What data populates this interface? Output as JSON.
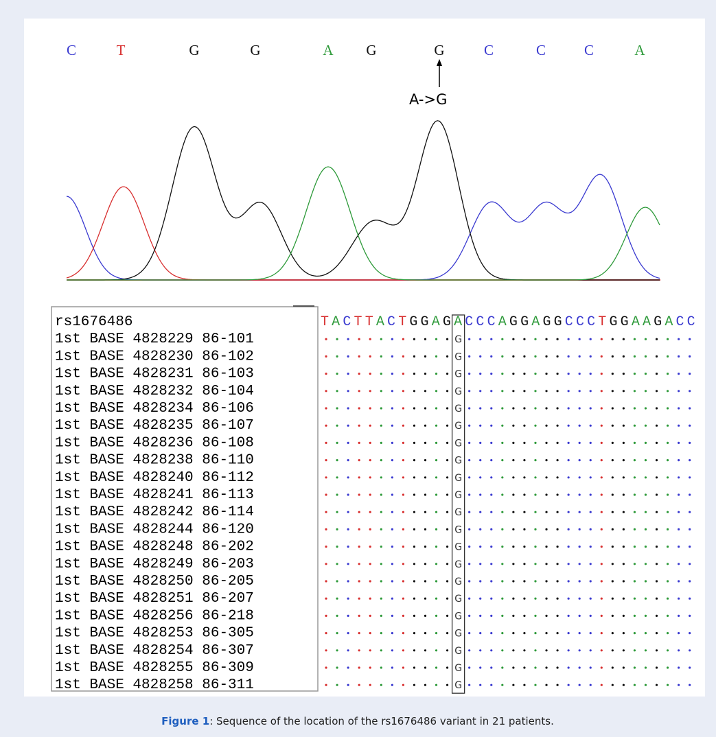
{
  "figure": {
    "base_calls": [
      "C",
      "T",
      "G",
      "G",
      "A",
      "G",
      "G",
      "C",
      "C",
      "C",
      "A"
    ],
    "base_colors": {
      "A": "#2e9a3a",
      "C": "#3a3ad0",
      "G": "#111111",
      "T": "#d83030"
    },
    "annotation": "A->G",
    "alignment": {
      "header": "rs1676486",
      "reference_before": "TACTTACTGGAG",
      "reference_site": "A",
      "reference_after": "CCCAGGAGGCCCTGGAAGACC",
      "rows": [
        {
          "label": "1st BASE 4828229 86-101",
          "call": "G"
        },
        {
          "label": "1st BASE 4828230 86-102",
          "call": "G"
        },
        {
          "label": "1st BASE 4828231 86-103",
          "call": "G"
        },
        {
          "label": "1st BASE 4828232 86-104",
          "call": "G"
        },
        {
          "label": "1st BASE 4828234 86-106",
          "call": "G"
        },
        {
          "label": "1st BASE 4828235 86-107",
          "call": "G"
        },
        {
          "label": "1st BASE 4828236 86-108",
          "call": "G"
        },
        {
          "label": "1st BASE 4828238 86-110",
          "call": "G"
        },
        {
          "label": "1st BASE 4828240 86-112",
          "call": "G"
        },
        {
          "label": "1st BASE 4828241 86-113",
          "call": "G"
        },
        {
          "label": "1st BASE 4828242 86-114",
          "call": "G"
        },
        {
          "label": "1st BASE 4828244 86-120",
          "call": "G"
        },
        {
          "label": "1st BASE 4828248 86-202",
          "call": "G"
        },
        {
          "label": "1st BASE 4828249 86-203",
          "call": "G"
        },
        {
          "label": "1st BASE 4828250 86-205",
          "call": "G"
        },
        {
          "label": "1st BASE 4828251 86-207",
          "call": "G"
        },
        {
          "label": "1st BASE 4828256 86-218",
          "call": "G"
        },
        {
          "label": "1st BASE 4828253 86-305",
          "call": "G"
        },
        {
          "label": "1st BASE 4828254 86-307",
          "call": "G"
        },
        {
          "label": "1st BASE 4828255 86-309",
          "call": "G"
        },
        {
          "label": "1st BASE 4828258 86-311",
          "call": "G"
        }
      ]
    },
    "caption": {
      "label": "Figure 1",
      "text": ": Sequence of the location of the rs1676486 variant in 21 patients."
    }
  }
}
